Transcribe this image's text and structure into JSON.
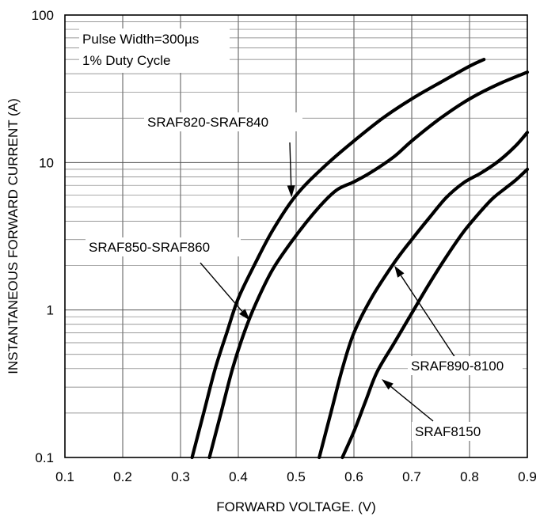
{
  "chart_data": {
    "type": "line",
    "title": "",
    "xlabel": "FORWARD VOLTAGE. (V)",
    "ylabel": "INSTANTANEOUS FORWARD CURRENT (A)",
    "x_scale": "linear",
    "y_scale": "log",
    "xlim": [
      0.1,
      0.9
    ],
    "ylim": [
      0.1,
      100
    ],
    "x_ticks": [
      0.1,
      0.2,
      0.3,
      0.4,
      0.5,
      0.6,
      0.7,
      0.8,
      0.9
    ],
    "x_tick_labels": [
      "0.1",
      "0.2",
      "0.3",
      "0.4",
      "0.5",
      "0.6",
      "0.7",
      "0.8",
      "0.9"
    ],
    "y_ticks": [
      0.1,
      1,
      10,
      100
    ],
    "y_tick_labels": [
      "0.1",
      "1",
      "10",
      "100"
    ],
    "grid": true,
    "note_lines": [
      "Pulse Width=300µs",
      "1% Duty Cycle"
    ],
    "series": [
      {
        "name": "SRAF820-SRAF840",
        "points": [
          [
            0.32,
            0.1
          ],
          [
            0.34,
            0.2
          ],
          [
            0.36,
            0.4
          ],
          [
            0.38,
            0.7
          ],
          [
            0.4,
            1.2
          ],
          [
            0.43,
            2.1
          ],
          [
            0.46,
            3.5
          ],
          [
            0.5,
            6.0
          ],
          [
            0.55,
            9.5
          ],
          [
            0.6,
            14
          ],
          [
            0.65,
            20
          ],
          [
            0.7,
            27
          ],
          [
            0.75,
            35
          ],
          [
            0.8,
            45
          ],
          [
            0.825,
            50
          ]
        ]
      },
      {
        "name": "SRAF850-SRAF860",
        "points": [
          [
            0.35,
            0.1
          ],
          [
            0.37,
            0.2
          ],
          [
            0.39,
            0.4
          ],
          [
            0.41,
            0.7
          ],
          [
            0.43,
            1.1
          ],
          [
            0.46,
            1.9
          ],
          [
            0.5,
            3.2
          ],
          [
            0.54,
            5.0
          ],
          [
            0.57,
            6.5
          ],
          [
            0.6,
            7.4
          ],
          [
            0.63,
            8.6
          ],
          [
            0.67,
            11
          ],
          [
            0.7,
            14
          ],
          [
            0.75,
            20
          ],
          [
            0.8,
            27
          ],
          [
            0.85,
            34
          ],
          [
            0.9,
            41
          ]
        ]
      },
      {
        "name": "SRAF890-8100",
        "points": [
          [
            0.54,
            0.1
          ],
          [
            0.56,
            0.2
          ],
          [
            0.58,
            0.4
          ],
          [
            0.6,
            0.7
          ],
          [
            0.63,
            1.2
          ],
          [
            0.67,
            2.1
          ],
          [
            0.7,
            3.0
          ],
          [
            0.73,
            4.2
          ],
          [
            0.76,
            5.8
          ],
          [
            0.79,
            7.3
          ],
          [
            0.82,
            8.5
          ],
          [
            0.85,
            10.2
          ],
          [
            0.88,
            13
          ],
          [
            0.9,
            16
          ]
        ]
      },
      {
        "name": "SRAF8150",
        "points": [
          [
            0.58,
            0.1
          ],
          [
            0.6,
            0.15
          ],
          [
            0.62,
            0.24
          ],
          [
            0.64,
            0.38
          ],
          [
            0.67,
            0.6
          ],
          [
            0.7,
            0.95
          ],
          [
            0.73,
            1.5
          ],
          [
            0.76,
            2.3
          ],
          [
            0.79,
            3.4
          ],
          [
            0.82,
            4.7
          ],
          [
            0.84,
            5.7
          ],
          [
            0.86,
            6.6
          ],
          [
            0.88,
            7.6
          ],
          [
            0.9,
            9
          ]
        ]
      }
    ],
    "callouts": [
      {
        "text": "SRAF820-SRAF840",
        "target": [
          0.492,
          5.8
        ]
      },
      {
        "text": "SRAF850-SRAF860",
        "target": [
          0.42,
          0.85
        ]
      },
      {
        "text": "SRAF890-8100",
        "target": [
          0.67,
          2.0
        ]
      },
      {
        "text": "SRAF8150",
        "target": [
          0.648,
          0.34
        ]
      }
    ]
  }
}
